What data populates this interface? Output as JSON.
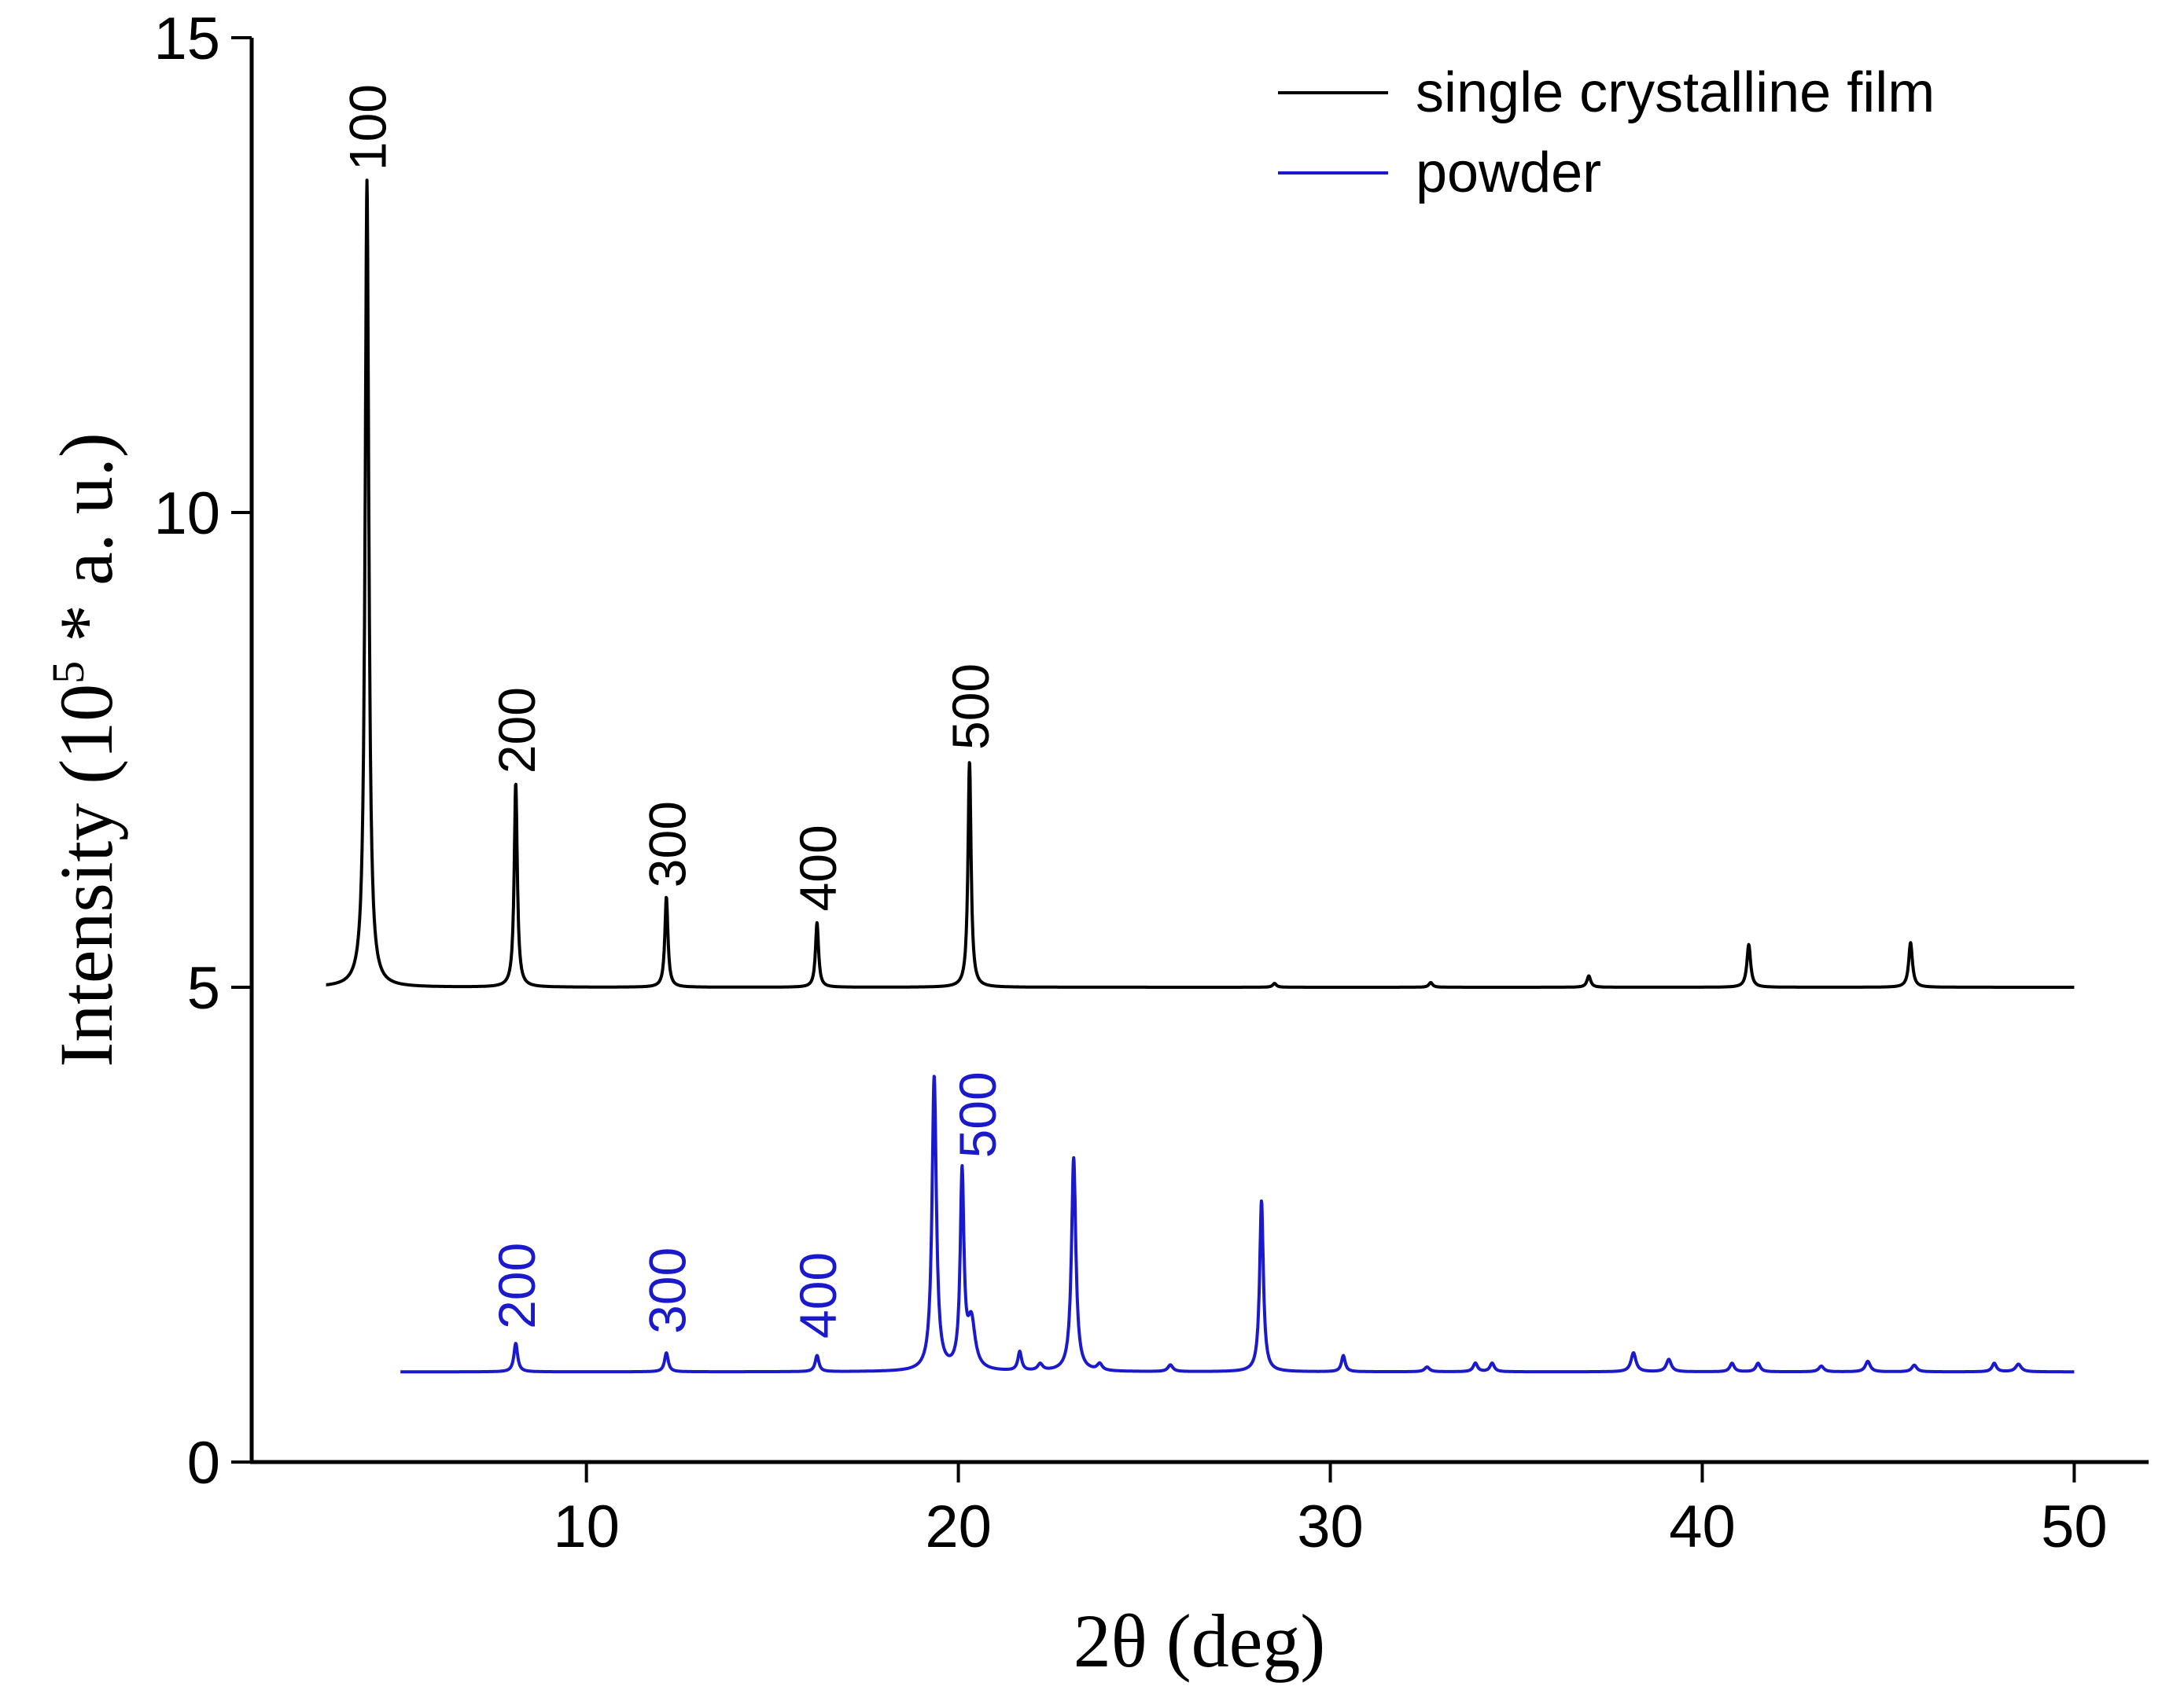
{
  "chart_data": {
    "type": "line",
    "title": "",
    "xlabel": "2θ (deg)",
    "ylabel_main": "Intensity (10",
    "ylabel_sup": "5",
    "ylabel_tail": " * a. u.)",
    "xlim": [
      1,
      52
    ],
    "ylim": [
      0,
      15
    ],
    "x_ticks": [
      10,
      20,
      30,
      40,
      50
    ],
    "y_ticks": [
      0,
      5,
      10,
      15
    ],
    "x_tick_labels": [
      "10",
      "20",
      "30",
      "40",
      "50"
    ],
    "y_tick_labels": [
      "0",
      "5",
      "10",
      "15"
    ],
    "legend": {
      "position": "top-right",
      "entries": [
        {
          "label": "single crystalline film",
          "color": "#000000"
        },
        {
          "label": "powder",
          "color": "#1a1acc"
        }
      ]
    },
    "series": [
      {
        "name": "single crystalline film",
        "color": "#000000",
        "baseline": 5.0,
        "x_range": [
          3,
          50
        ],
        "peaks": [
          {
            "x": 4.1,
            "y": 13.5,
            "w": 0.06
          },
          {
            "x": 8.1,
            "y": 7.15,
            "w": 0.05
          },
          {
            "x": 12.15,
            "y": 5.95,
            "w": 0.05
          },
          {
            "x": 16.2,
            "y": 5.68,
            "w": 0.05
          },
          {
            "x": 20.3,
            "y": 7.38,
            "w": 0.05
          },
          {
            "x": 28.5,
            "y": 5.04,
            "w": 0.06
          },
          {
            "x": 32.7,
            "y": 5.05,
            "w": 0.06
          },
          {
            "x": 36.95,
            "y": 5.12,
            "w": 0.06
          },
          {
            "x": 41.25,
            "y": 5.45,
            "w": 0.06
          },
          {
            "x": 45.6,
            "y": 5.47,
            "w": 0.06
          }
        ]
      },
      {
        "name": "powder",
        "color": "#1a1acc",
        "baseline": 0.95,
        "x_range": [
          5,
          50
        ],
        "peaks": [
          {
            "x": 8.1,
            "y": 1.25,
            "w": 0.06
          },
          {
            "x": 12.15,
            "y": 1.15,
            "w": 0.06
          },
          {
            "x": 16.2,
            "y": 1.12,
            "w": 0.06
          },
          {
            "x": 19.35,
            "y": 4.05,
            "w": 0.07
          },
          {
            "x": 20.1,
            "y": 3.0,
            "w": 0.06
          },
          {
            "x": 20.35,
            "y": 1.45,
            "w": 0.12
          },
          {
            "x": 21.65,
            "y": 1.15,
            "w": 0.06
          },
          {
            "x": 22.2,
            "y": 1.02,
            "w": 0.08
          },
          {
            "x": 23.1,
            "y": 3.2,
            "w": 0.07
          },
          {
            "x": 23.8,
            "y": 1.02,
            "w": 0.08
          },
          {
            "x": 25.7,
            "y": 1.02,
            "w": 0.08
          },
          {
            "x": 28.15,
            "y": 2.75,
            "w": 0.06
          },
          {
            "x": 30.35,
            "y": 1.12,
            "w": 0.06
          },
          {
            "x": 32.6,
            "y": 1.0,
            "w": 0.08
          },
          {
            "x": 33.9,
            "y": 1.04,
            "w": 0.07
          },
          {
            "x": 34.35,
            "y": 1.04,
            "w": 0.07
          },
          {
            "x": 38.15,
            "y": 1.15,
            "w": 0.08
          },
          {
            "x": 39.1,
            "y": 1.08,
            "w": 0.08
          },
          {
            "x": 40.8,
            "y": 1.04,
            "w": 0.07
          },
          {
            "x": 41.5,
            "y": 1.04,
            "w": 0.07
          },
          {
            "x": 43.2,
            "y": 1.01,
            "w": 0.08
          },
          {
            "x": 44.45,
            "y": 1.06,
            "w": 0.08
          },
          {
            "x": 45.7,
            "y": 1.02,
            "w": 0.08
          },
          {
            "x": 47.85,
            "y": 1.04,
            "w": 0.07
          },
          {
            "x": 48.5,
            "y": 1.03,
            "w": 0.09
          }
        ]
      }
    ],
    "annotations": [
      {
        "text": "100",
        "x": 4.1,
        "y": 13.6,
        "series": "single crystalline film"
      },
      {
        "text": "200",
        "x": 8.1,
        "y": 7.25,
        "series": "single crystalline film"
      },
      {
        "text": "300",
        "x": 12.15,
        "y": 6.05,
        "series": "single crystalline film"
      },
      {
        "text": "400",
        "x": 16.2,
        "y": 5.8,
        "series": "single crystalline film"
      },
      {
        "text": "500",
        "x": 20.3,
        "y": 7.5,
        "series": "single crystalline film"
      },
      {
        "text": "200",
        "x": 8.1,
        "y": 1.4,
        "series": "powder"
      },
      {
        "text": "300",
        "x": 12.15,
        "y": 1.35,
        "series": "powder"
      },
      {
        "text": "400",
        "x": 16.2,
        "y": 1.3,
        "series": "powder"
      },
      {
        "text": "500",
        "x": 20.5,
        "y": 3.2,
        "series": "powder"
      }
    ]
  }
}
